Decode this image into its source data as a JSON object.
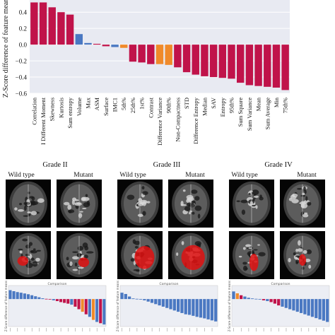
{
  "top_chart": {
    "ylabel": "Z-Score difference of feature means",
    "ylim": [
      -0.6,
      0.55
    ],
    "yticks": [
      0.4,
      0.2,
      0.0,
      -0.2,
      -0.4,
      -0.6
    ],
    "ytick_labels": [
      "0.4",
      "0.2",
      "0.0",
      "−0.2",
      "−0.4",
      "−0.6"
    ],
    "grid": true,
    "colors": {
      "red": "#c0134a",
      "blue": "#4a78c2",
      "orange": "#f08a2a",
      "background": "#e8eaf2"
    }
  },
  "chart_data": {
    "type": "bar",
    "categories": [
      "Correlation",
      "I Different Moment",
      "Skewness",
      "Kurtosis",
      "Sum entropy",
      "Volume",
      "Max",
      "ASM",
      "Surface",
      "IMC1",
      "5th%",
      "25th%",
      "1st%",
      "Contrast",
      "Difference Variance",
      "90th%",
      "Non-Compactness",
      "STD",
      "Difference Entropy",
      "Median",
      "SAV",
      "Entropy",
      "95th%",
      "Sum Square",
      "Sum Variance",
      "Mean",
      "Sum Average",
      "Min",
      "75th%"
    ],
    "values": [
      0.52,
      0.52,
      0.46,
      0.4,
      0.37,
      0.13,
      0.02,
      0.01,
      -0.02,
      -0.03,
      -0.04,
      -0.21,
      -0.22,
      -0.24,
      -0.24,
      -0.25,
      -0.28,
      -0.34,
      -0.37,
      -0.39,
      -0.4,
      -0.41,
      -0.42,
      -0.47,
      -0.5,
      -0.51,
      -0.52,
      -0.53,
      -0.56
    ],
    "colors": [
      "red",
      "red",
      "red",
      "red",
      "red",
      "blue",
      "blue",
      "red",
      "red",
      "blue",
      "orange",
      "red",
      "red",
      "red",
      "orange",
      "orange",
      "red",
      "red",
      "red",
      "red",
      "red",
      "red",
      "red",
      "red",
      "red",
      "red",
      "red",
      "red",
      "red"
    ],
    "ylabel": "Z-Score difference of feature means",
    "ylim": [
      -0.6,
      0.55
    ]
  },
  "grades": [
    {
      "title": "Grade II",
      "wild": "Wild type",
      "mutant": "Mutant"
    },
    {
      "title": "Grade III",
      "wild": "Wild type",
      "mutant": "Mutant"
    },
    {
      "title": "Grade IV",
      "wild": "Wild type",
      "mutant": "Mutant"
    }
  ],
  "mini_charts": [
    {
      "title": "Comparison",
      "values": [
        0.7,
        0.62,
        0.55,
        0.5,
        0.44,
        0.38,
        0.3,
        0.22,
        0.14,
        0.06,
        0.02,
        -0.02,
        -0.05,
        -0.08,
        -0.12,
        -0.15,
        -0.18,
        -0.22,
        -0.3,
        -0.4,
        -0.5,
        -0.6,
        -0.7,
        -0.82,
        -0.9,
        -0.95,
        -1.0
      ],
      "colors": [
        "blue",
        "blue",
        "blue",
        "blue",
        "blue",
        "blue",
        "blue",
        "blue",
        "blue",
        "blue",
        "red",
        "red",
        "blue",
        "red",
        "red",
        "red",
        "red",
        "blue",
        "red",
        "red",
        "orange",
        "red",
        "blue",
        "orange",
        "blue",
        "red",
        "blue"
      ]
    },
    {
      "title": "Comparison",
      "values": [
        0.5,
        0.4,
        0.2,
        0.05,
        0.02,
        -0.02,
        -0.05,
        -0.1,
        -0.15,
        -0.2,
        -0.25,
        -0.3,
        -0.35,
        -0.4,
        -0.45,
        -0.5,
        -0.55,
        -0.6,
        -0.62,
        -0.66,
        -0.7,
        -0.73,
        -0.76,
        -0.8,
        -0.84,
        -0.88
      ],
      "colors": [
        "blue",
        "blue",
        "blue",
        "blue",
        "blue",
        "blue",
        "blue",
        "blue",
        "blue",
        "blue",
        "blue",
        "blue",
        "blue",
        "blue",
        "blue",
        "blue",
        "blue",
        "blue",
        "blue",
        "blue",
        "blue",
        "blue",
        "blue",
        "blue",
        "blue",
        "blue"
      ]
    },
    {
      "title": "Comparison",
      "values": [
        0.6,
        0.45,
        0.3,
        0.2,
        0.1,
        0.05,
        0.02,
        -0.02,
        -0.05,
        -0.08,
        -0.12,
        -0.18,
        -0.25,
        -0.3,
        -0.35,
        -0.4,
        -0.45,
        -0.5,
        -0.55,
        -0.6,
        -0.65,
        -0.7,
        -0.75,
        -0.8,
        -0.85,
        -0.9
      ],
      "colors": [
        "blue",
        "orange",
        "red",
        "blue",
        "blue",
        "blue",
        "blue",
        "blue",
        "red",
        "blue",
        "red",
        "red",
        "red",
        "blue",
        "blue",
        "blue",
        "blue",
        "blue",
        "blue",
        "blue",
        "blue",
        "blue",
        "blue",
        "blue",
        "blue",
        "blue"
      ]
    }
  ]
}
